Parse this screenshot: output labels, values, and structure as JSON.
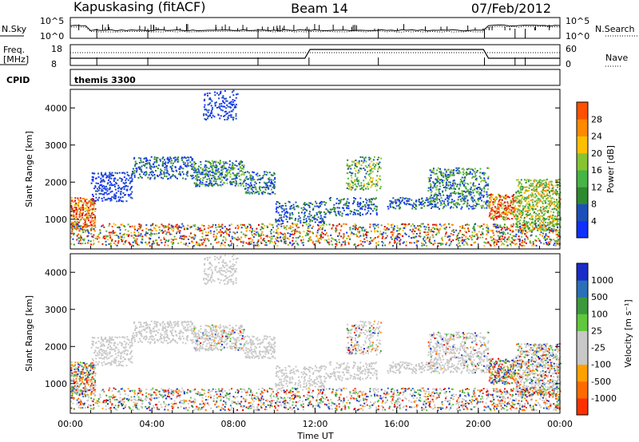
{
  "header": {
    "station": "Kapuskasing (fitACF)",
    "beam": "Beam 14",
    "date": "07/Feb/2012"
  },
  "params_panel": {
    "nsky_label": "N.Sky",
    "nsky_ticks": [
      "10^5",
      "10^0"
    ],
    "nsearch_label": "N.Search",
    "nsearch_ticks": [
      "10^5",
      "10^0"
    ],
    "freq_label": "Freq.",
    "freq_unit": "[MHz]",
    "freq_ticks": [
      "18",
      "8"
    ],
    "nave_label": "Nave",
    "nave_ticks": [
      "60",
      "0"
    ],
    "cpid_label": "CPID",
    "cpid_value": "themis 3300"
  },
  "colors": {
    "power": [
      "#1030ff",
      "#1c4fb8",
      "#2e8a2e",
      "#46b446",
      "#86c432",
      "#ffbf00",
      "#ff8a00",
      "#ff5000",
      "#e61a00",
      "#d20000"
    ],
    "velocity": [
      "#1a2cc8",
      "#2a6fb8",
      "#3c9a3c",
      "#60c83c",
      "#c8c8c8",
      "#c8c8c8",
      "#ffa000",
      "#ff6a00",
      "#ff3000",
      "#e00000"
    ]
  },
  "chart_data": [
    {
      "type": "heatmap",
      "name": "power",
      "ylabel": "Slant Range [km]",
      "yticks": [
        "1000",
        "2000",
        "3000",
        "4000"
      ],
      "ylim": [
        200,
        4500
      ],
      "xlim": [
        0,
        24
      ],
      "colorbar": {
        "label": "Power [dB]",
        "range": [
          0,
          32
        ],
        "ticks": [
          "4",
          "8",
          "12",
          "16",
          "20",
          "24",
          "28"
        ]
      }
    },
    {
      "type": "heatmap",
      "name": "velocity",
      "ylabel": "Slant Range [km]",
      "yticks": [
        "1000",
        "2000",
        "3000",
        "4000"
      ],
      "ylim": [
        200,
        4500
      ],
      "xlim": [
        0,
        24
      ],
      "xlabel": "Time UT",
      "xticks": [
        "00:00",
        "04:00",
        "08:00",
        "12:00",
        "16:00",
        "20:00",
        "00:00"
      ],
      "colorbar": {
        "label": "Velocity [m s⁻¹]",
        "ticks": [
          "1000",
          "500",
          "100",
          "25",
          "-25",
          "-100",
          "-500",
          "-1000"
        ]
      }
    }
  ]
}
